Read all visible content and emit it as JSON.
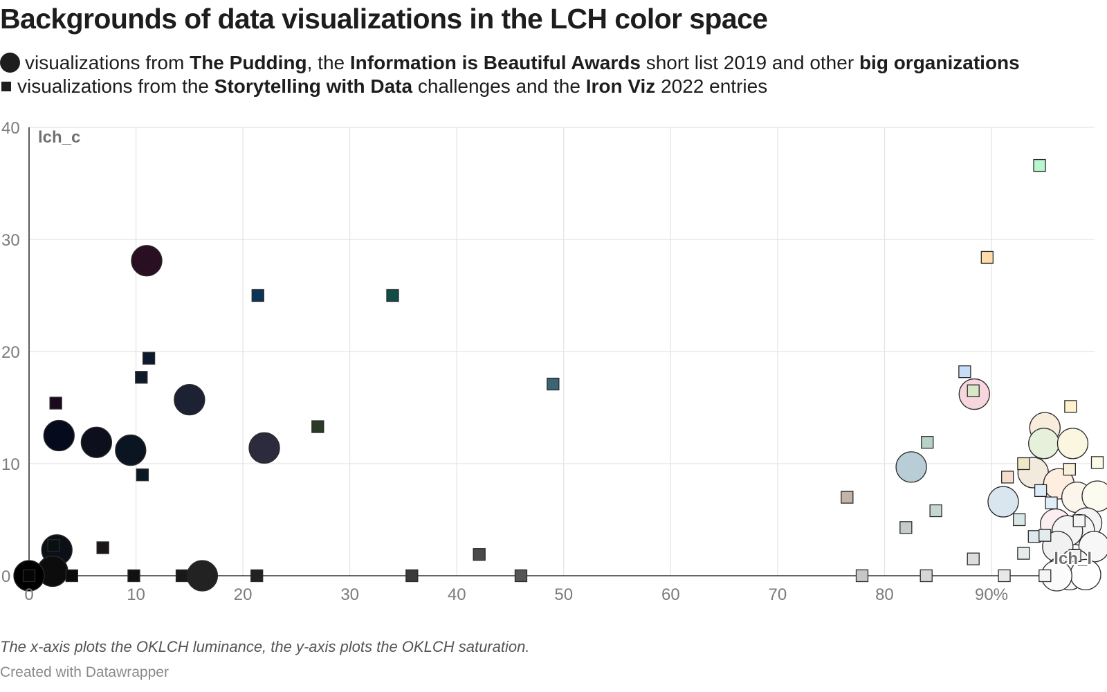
{
  "chart_data": {
    "type": "scatter",
    "title": "Backgrounds of data visualizations in the LCH color space",
    "legend": [
      {
        "marker": "circle",
        "segments": [
          {
            "text": "visualizations from ",
            "bold": false
          },
          {
            "text": "The Pudding",
            "bold": true
          },
          {
            "text": ", the ",
            "bold": false
          },
          {
            "text": "Information is Beautiful Awards",
            "bold": true
          },
          {
            "text": " short list 2019 and other ",
            "bold": false
          },
          {
            "text": "big organizations",
            "bold": true
          }
        ]
      },
      {
        "marker": "square",
        "segments": [
          {
            "text": "visualizations from the ",
            "bold": false
          },
          {
            "text": "Storytelling with Data",
            "bold": true
          },
          {
            "text": " challenges and the ",
            "bold": false
          },
          {
            "text": "Iron Viz",
            "bold": true
          },
          {
            "text": " 2022 entries",
            "bold": false
          }
        ]
      }
    ],
    "xlabel": "lch_l",
    "ylabel": "lch_c",
    "xlim": [
      0,
      100
    ],
    "ylim": [
      0,
      40
    ],
    "x_ticks": [
      {
        "value": 0,
        "label": "0"
      },
      {
        "value": 10,
        "label": "10"
      },
      {
        "value": 20,
        "label": "20"
      },
      {
        "value": 30,
        "label": "30"
      },
      {
        "value": 40,
        "label": "40"
      },
      {
        "value": 50,
        "label": "50"
      },
      {
        "value": 60,
        "label": "60"
      },
      {
        "value": 70,
        "label": "70"
      },
      {
        "value": 80,
        "label": "80"
      },
      {
        "value": 90,
        "label": "90%"
      }
    ],
    "y_ticks": [
      {
        "value": 0,
        "label": "0"
      },
      {
        "value": 10,
        "label": "10"
      },
      {
        "value": 20,
        "label": "20"
      },
      {
        "value": 30,
        "label": "30"
      },
      {
        "value": 40,
        "label": "40"
      }
    ],
    "grid": true,
    "series": [
      {
        "name": "circle",
        "points": [
          {
            "x": 11.0,
            "y": 28.1,
            "color": "#2a0e22"
          },
          {
            "x": 15.0,
            "y": 15.7,
            "color": "#1c2234"
          },
          {
            "x": 2.8,
            "y": 12.5,
            "color": "#050a1c"
          },
          {
            "x": 6.3,
            "y": 11.9,
            "color": "#0d0f1c"
          },
          {
            "x": 9.5,
            "y": 11.2,
            "color": "#0b1522"
          },
          {
            "x": 22.0,
            "y": 11.4,
            "color": "#2c2b3d"
          },
          {
            "x": 2.6,
            "y": 2.3,
            "color": "#0a1016"
          },
          {
            "x": 2.2,
            "y": 0.4,
            "color": "#0c0c0c"
          },
          {
            "x": 0.0,
            "y": 0.0,
            "color": "#000000"
          },
          {
            "x": 16.2,
            "y": 0.0,
            "color": "#222222"
          },
          {
            "x": 82.5,
            "y": 9.7,
            "color": "#b8cdd6"
          },
          {
            "x": 88.4,
            "y": 16.2,
            "color": "#f7d6de"
          },
          {
            "x": 95.0,
            "y": 13.2,
            "color": "#f8eddc"
          },
          {
            "x": 94.9,
            "y": 11.8,
            "color": "#e6f1dc"
          },
          {
            "x": 97.6,
            "y": 11.8,
            "color": "#fbf6e0"
          },
          {
            "x": 93.9,
            "y": 9.2,
            "color": "#f2eadc"
          },
          {
            "x": 96.3,
            "y": 8.2,
            "color": "#fdeedf"
          },
          {
            "x": 98.0,
            "y": 7.0,
            "color": "#fbf5ec"
          },
          {
            "x": 99.9,
            "y": 7.1,
            "color": "#fbfbef"
          },
          {
            "x": 91.1,
            "y": 6.6,
            "color": "#d9e6ef"
          },
          {
            "x": 98.9,
            "y": 4.7,
            "color": "#f4f4f4"
          },
          {
            "x": 96.0,
            "y": 4.6,
            "color": "#fcedf0"
          },
          {
            "x": 98.2,
            "y": 4.1,
            "color": "#f5f5f5"
          },
          {
            "x": 97.1,
            "y": 4.0,
            "color": "#f4f4f4"
          },
          {
            "x": 99.6,
            "y": 2.6,
            "color": "#f7f7f7"
          },
          {
            "x": 96.2,
            "y": 2.6,
            "color": "#f1f1f1"
          },
          {
            "x": 97.8,
            "y": 1.0,
            "color": "#f6f6f6"
          },
          {
            "x": 96.5,
            "y": 0.3,
            "color": "#f8f8f8"
          },
          {
            "x": 97.3,
            "y": 0.1,
            "color": "#f9f9f9"
          },
          {
            "x": 98.8,
            "y": 0.1,
            "color": "#ffffff"
          },
          {
            "x": 96.1,
            "y": 0.0,
            "color": "#fbfbfb"
          }
        ]
      },
      {
        "name": "square",
        "points": [
          {
            "x": 2.5,
            "y": 15.4,
            "color": "#1a0a1c"
          },
          {
            "x": 10.5,
            "y": 17.7,
            "color": "#0e1a2c"
          },
          {
            "x": 11.2,
            "y": 19.4,
            "color": "#0c1a30"
          },
          {
            "x": 10.6,
            "y": 9.0,
            "color": "#0a1a24"
          },
          {
            "x": 21.4,
            "y": 25.0,
            "color": "#0b3556"
          },
          {
            "x": 34.0,
            "y": 25.0,
            "color": "#0f4e46"
          },
          {
            "x": 27.0,
            "y": 13.3,
            "color": "#2b3a24"
          },
          {
            "x": 49.0,
            "y": 17.1,
            "color": "#3c6474"
          },
          {
            "x": 6.9,
            "y": 2.5,
            "color": "#1d1616"
          },
          {
            "x": 2.3,
            "y": 2.7,
            "color": "#0a1012"
          },
          {
            "x": 0.0,
            "y": 0.0,
            "color": "#050505"
          },
          {
            "x": 4.0,
            "y": 0.0,
            "color": "#0b0b0b"
          },
          {
            "x": 9.8,
            "y": 0.0,
            "color": "#111111"
          },
          {
            "x": 14.3,
            "y": 0.0,
            "color": "#191919"
          },
          {
            "x": 21.3,
            "y": 0.0,
            "color": "#222222"
          },
          {
            "x": 35.8,
            "y": 0.0,
            "color": "#3a3a3a"
          },
          {
            "x": 42.1,
            "y": 1.9,
            "color": "#4a4a4a"
          },
          {
            "x": 46.0,
            "y": 0.0,
            "color": "#555555"
          },
          {
            "x": 94.5,
            "y": 36.6,
            "color": "#b8f8d0"
          },
          {
            "x": 89.6,
            "y": 28.4,
            "color": "#ffdcaa"
          },
          {
            "x": 87.5,
            "y": 18.2,
            "color": "#c6dcf8"
          },
          {
            "x": 88.3,
            "y": 16.5,
            "color": "#d6e8c6"
          },
          {
            "x": 84.0,
            "y": 11.9,
            "color": "#b8d2c6"
          },
          {
            "x": 97.4,
            "y": 15.1,
            "color": "#fdf2cc"
          },
          {
            "x": 91.5,
            "y": 8.8,
            "color": "#f6dccd"
          },
          {
            "x": 93.0,
            "y": 10.0,
            "color": "#f0e6c8"
          },
          {
            "x": 97.3,
            "y": 9.5,
            "color": "#f9f0dc"
          },
          {
            "x": 99.9,
            "y": 10.1,
            "color": "#fbfbe6"
          },
          {
            "x": 76.5,
            "y": 7.0,
            "color": "#c4b4a8"
          },
          {
            "x": 84.8,
            "y": 5.8,
            "color": "#c6d6d0"
          },
          {
            "x": 94.6,
            "y": 7.6,
            "color": "#dcecf8"
          },
          {
            "x": 95.6,
            "y": 6.5,
            "color": "#e0eef8"
          },
          {
            "x": 82.0,
            "y": 4.3,
            "color": "#c4cccc"
          },
          {
            "x": 92.6,
            "y": 5.0,
            "color": "#d8e6e6"
          },
          {
            "x": 94.0,
            "y": 3.5,
            "color": "#dce8ec"
          },
          {
            "x": 95.0,
            "y": 3.6,
            "color": "#e2ecec"
          },
          {
            "x": 93.0,
            "y": 2.0,
            "color": "#e6ecec"
          },
          {
            "x": 88.3,
            "y": 1.5,
            "color": "#dddddd"
          },
          {
            "x": 97.8,
            "y": 1.8,
            "color": "#f0f0f0"
          },
          {
            "x": 77.9,
            "y": 0.0,
            "color": "#c6c6c6"
          },
          {
            "x": 83.9,
            "y": 0.0,
            "color": "#d6d6d6"
          },
          {
            "x": 91.2,
            "y": 0.0,
            "color": "#e8e8e8"
          },
          {
            "x": 95.0,
            "y": 0.0,
            "color": "#f4f4f4"
          },
          {
            "x": 98.2,
            "y": 4.9,
            "color": "#f4f4f4"
          }
        ]
      }
    ],
    "notes": "The x-axis plots the OKLCH luminance, the y-axis plots the OKLCH saturation.",
    "credit": "Created with Datawrapper"
  }
}
